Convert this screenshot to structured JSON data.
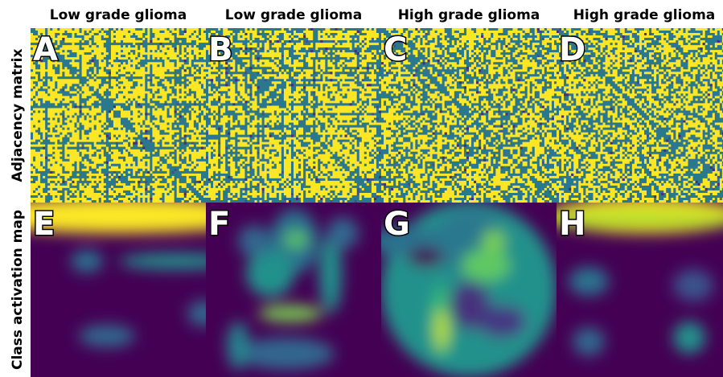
{
  "column_titles": [
    "Low grade glioma",
    "Low grade glioma",
    "High grade glioma",
    "High grade glioma"
  ],
  "row_labels": [
    "Adjacency matrix",
    "Class activation map"
  ],
  "panel_labels": [
    "A",
    "B",
    "C",
    "D",
    "E",
    "F",
    "G",
    "H"
  ]
}
